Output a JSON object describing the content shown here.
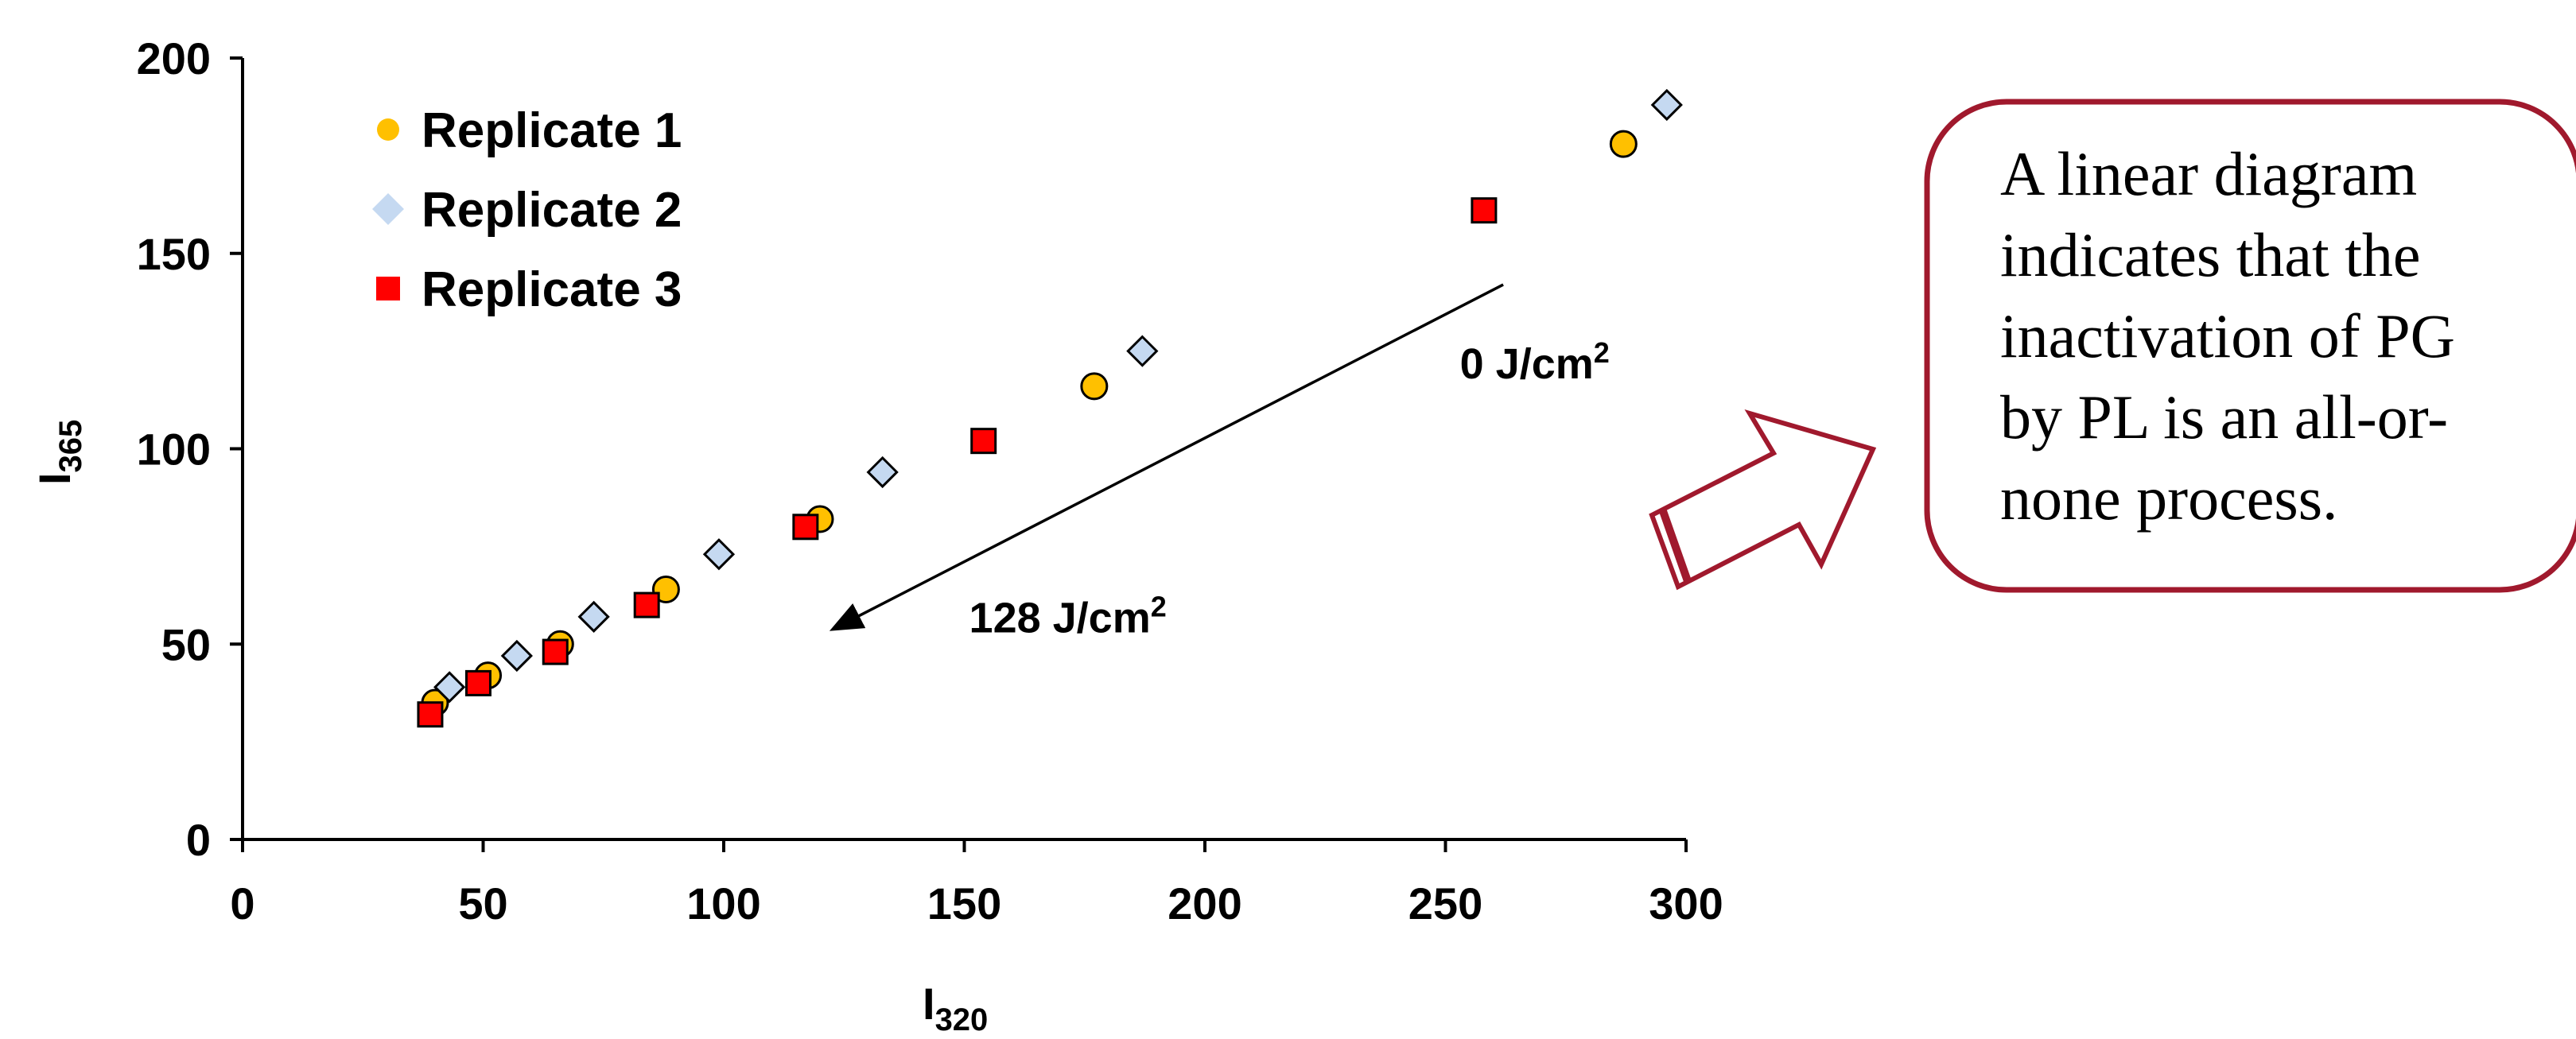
{
  "chart_data": {
    "type": "scatter",
    "xlabel": "I",
    "xlabel_sub": "320",
    "ylabel": "I",
    "ylabel_sub": "365",
    "xlim": [
      0,
      300
    ],
    "ylim": [
      0,
      200
    ],
    "x_ticks": [
      0,
      50,
      100,
      150,
      200,
      250,
      300
    ],
    "y_ticks": [
      0,
      50,
      100,
      150,
      200
    ],
    "grid": false,
    "legend_position": "top-left",
    "series": [
      {
        "name": "Replicate 1",
        "marker": "circle",
        "color": "#FFC000",
        "points": [
          [
            40,
            35
          ],
          [
            51,
            42
          ],
          [
            66,
            50
          ],
          [
            88,
            64
          ],
          [
            120,
            82
          ],
          [
            177,
            116
          ],
          [
            287,
            178
          ]
        ]
      },
      {
        "name": "Replicate 2",
        "marker": "diamond",
        "color": "#C5D9F1",
        "points": [
          [
            43,
            39
          ],
          [
            57,
            47
          ],
          [
            73,
            57
          ],
          [
            99,
            73
          ],
          [
            133,
            94
          ],
          [
            187,
            125
          ],
          [
            296,
            188
          ]
        ]
      },
      {
        "name": "Replicate 3",
        "marker": "square",
        "color": "#FF0000",
        "points": [
          [
            39,
            32
          ],
          [
            49,
            40
          ],
          [
            65,
            48
          ],
          [
            84,
            60
          ],
          [
            117,
            80
          ],
          [
            154,
            102
          ],
          [
            258,
            161
          ]
        ]
      }
    ],
    "arrow": {
      "from": [
        262,
        142
      ],
      "to": [
        123,
        54
      ]
    },
    "annotations": [
      {
        "id": "start",
        "text": "0 J/cm",
        "sup": "2",
        "x": 253,
        "y": 118
      },
      {
        "id": "end",
        "text": "128 J/cm",
        "sup": "2",
        "x": 151,
        "y": 53
      }
    ]
  },
  "callout": {
    "lines": [
      "A linear diagram",
      "indicates that the",
      "inactivation of PG",
      "by PL is an all-or-",
      "none process."
    ],
    "border_color": "#A0192D"
  }
}
